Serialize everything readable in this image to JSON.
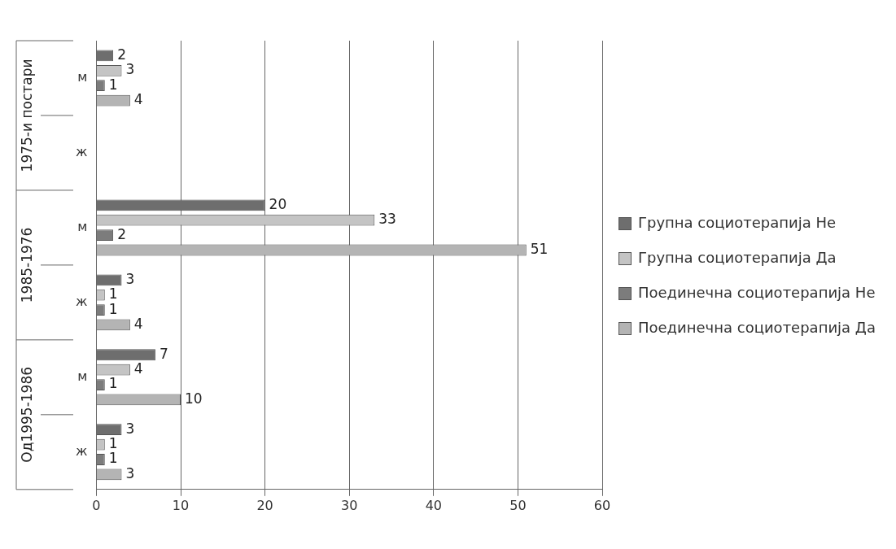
{
  "chart_data": {
    "type": "bar",
    "orientation": "horizontal",
    "categories": [
      "м",
      "ж",
      "м",
      "ж",
      "м",
      "ж"
    ],
    "annotations": [
      "1975-и постари",
      "1985-1976",
      "Од1995-1986"
    ],
    "series": [
      {
        "name": "Групна социотерапија Не",
        "color": "#6e6e6e",
        "values": [
          2,
          null,
          20,
          3,
          7,
          3
        ]
      },
      {
        "name": "Групна социотерапија Да",
        "color": "#c4c4c4",
        "values": [
          3,
          null,
          33,
          1,
          4,
          1
        ]
      },
      {
        "name": "Поединечна социотерапија Не",
        "color": "#7c7c7c",
        "values": [
          1,
          null,
          2,
          1,
          1,
          1
        ]
      },
      {
        "name": "Поединечна социотерапија Да",
        "color": "#b4b4b4",
        "values": [
          4,
          null,
          51,
          4,
          10,
          3
        ]
      }
    ],
    "xlim": [
      0,
      60
    ],
    "xticks": [
      0,
      10,
      20,
      30,
      40,
      50,
      60
    ],
    "grid": "x",
    "legend": "right",
    "data_labels": true
  }
}
